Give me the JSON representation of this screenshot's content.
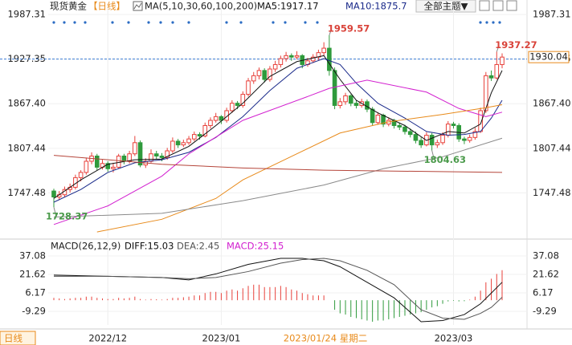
{
  "header": {
    "title": "现货黄金",
    "period": "【日线】",
    "ma_label": "MA(5,10,30,60,100,200)",
    "theme_button": "全部主题▼"
  },
  "chart_data": [
    {
      "type": "candlestick",
      "up_color": "#e8413b",
      "down_color": "#2f9a3c",
      "ylim": [
        1694,
        1996
      ],
      "yticks": [
        1987.31,
        1927.35,
        {
          "value": 1867.4,
          "label": "1867.40"
        },
        1807.44,
        1747.48
      ],
      "xticks": [
        {
          "value": 10,
          "label": "2022/12"
        },
        {
          "value": 31,
          "label": "2023/01"
        },
        {
          "value": 74,
          "label": "2023/03"
        }
      ],
      "reference_line": 1927.35,
      "ohlc": [
        [
          1750,
          1753,
          1728.37,
          1742
        ],
        [
          1742,
          1750,
          1738,
          1745
        ],
        [
          1745,
          1756,
          1742,
          1752
        ],
        [
          1752,
          1760,
          1748,
          1755
        ],
        [
          1755,
          1772,
          1752,
          1768
        ],
        [
          1768,
          1778,
          1763,
          1775
        ],
        [
          1775,
          1795,
          1772,
          1790
        ],
        [
          1790,
          1802,
          1786,
          1797
        ],
        [
          1797,
          1800,
          1778,
          1782
        ],
        [
          1782,
          1792,
          1779,
          1787
        ],
        [
          1787,
          1790,
          1776,
          1780
        ],
        [
          1780,
          1788,
          1775,
          1782
        ],
        [
          1782,
          1800,
          1780,
          1797
        ],
        [
          1797,
          1800,
          1786,
          1790
        ],
        [
          1790,
          1804,
          1787,
          1800
        ],
        [
          1800,
          1824,
          1797,
          1815
        ],
        [
          1815,
          1818,
          1782,
          1785
        ],
        [
          1785,
          1794,
          1781,
          1790
        ],
        [
          1790,
          1806,
          1788,
          1800
        ],
        [
          1800,
          1804,
          1793,
          1797
        ],
        [
          1797,
          1801,
          1790,
          1795
        ],
        [
          1795,
          1808,
          1792,
          1804
        ],
        [
          1804,
          1822,
          1801,
          1817
        ],
        [
          1817,
          1820,
          1808,
          1812
        ],
        [
          1812,
          1819,
          1809,
          1815
        ],
        [
          1815,
          1824,
          1812,
          1820
        ],
        [
          1820,
          1830,
          1817,
          1826
        ],
        [
          1826,
          1829,
          1819,
          1824
        ],
        [
          1824,
          1842,
          1822,
          1838
        ],
        [
          1838,
          1849,
          1834,
          1845
        ],
        [
          1845,
          1855,
          1842,
          1850
        ],
        [
          1850,
          1852,
          1840,
          1845
        ],
        [
          1845,
          1862,
          1842,
          1858
        ],
        [
          1858,
          1872,
          1855,
          1868
        ],
        [
          1868,
          1871,
          1860,
          1865
        ],
        [
          1865,
          1884,
          1862,
          1880
        ],
        [
          1880,
          1902,
          1877,
          1898
        ],
        [
          1898,
          1910,
          1894,
          1905
        ],
        [
          1905,
          1916,
          1900,
          1912
        ],
        [
          1912,
          1915,
          1896,
          1900
        ],
        [
          1900,
          1918,
          1897,
          1914
        ],
        [
          1914,
          1925,
          1910,
          1920
        ],
        [
          1920,
          1932,
          1916,
          1928
        ],
        [
          1928,
          1937,
          1924,
          1932
        ],
        [
          1932,
          1935,
          1925,
          1930
        ],
        [
          1930,
          1938,
          1927,
          1932
        ],
        [
          1932,
          1934,
          1915,
          1920
        ],
        [
          1920,
          1929,
          1917,
          1925
        ],
        [
          1925,
          1934,
          1922,
          1930
        ],
        [
          1930,
          1940,
          1926,
          1936
        ],
        [
          1936,
          1950,
          1932,
          1942
        ],
        [
          1942,
          1959.57,
          1905,
          1912
        ],
        [
          1912,
          1916,
          1860,
          1865
        ],
        [
          1865,
          1875,
          1861,
          1870
        ],
        [
          1870,
          1882,
          1866,
          1878
        ],
        [
          1878,
          1880,
          1864,
          1868
        ],
        [
          1868,
          1872,
          1861,
          1865
        ],
        [
          1865,
          1874,
          1862,
          1870
        ],
        [
          1870,
          1873,
          1856,
          1860
        ],
        [
          1860,
          1863,
          1838,
          1842
        ],
        [
          1842,
          1856,
          1839,
          1852
        ],
        [
          1852,
          1854,
          1836,
          1840
        ],
        [
          1840,
          1849,
          1837,
          1845
        ],
        [
          1845,
          1847,
          1834,
          1838
        ],
        [
          1838,
          1842,
          1832,
          1836
        ],
        [
          1836,
          1839,
          1826,
          1830
        ],
        [
          1830,
          1834,
          1822,
          1826
        ],
        [
          1826,
          1830,
          1814,
          1818
        ],
        [
          1818,
          1822,
          1808,
          1812
        ],
        [
          1812,
          1829,
          1810,
          1825
        ],
        [
          1825,
          1828,
          1804.63,
          1812
        ],
        [
          1812,
          1819,
          1808,
          1815
        ],
        [
          1815,
          1829,
          1812,
          1825
        ],
        [
          1825,
          1844,
          1822,
          1840
        ],
        [
          1840,
          1843,
          1834,
          1838
        ],
        [
          1838,
          1841,
          1816,
          1820
        ],
        [
          1820,
          1823,
          1813,
          1818
        ],
        [
          1818,
          1826,
          1815,
          1822
        ],
        [
          1822,
          1835,
          1819,
          1830
        ],
        [
          1830,
          1862,
          1828,
          1858
        ],
        [
          1858,
          1910,
          1855,
          1905
        ],
        [
          1905,
          1912,
          1898,
          1902
        ],
        [
          1902,
          1937.27,
          1900,
          1920
        ],
        [
          1920,
          1935,
          1915,
          1930.04
        ]
      ],
      "series": [
        {
          "name": "MA5:1917.17",
          "color": "#111111",
          "x": [
            0,
            5,
            10,
            15,
            20,
            25,
            30,
            35,
            40,
            45,
            50,
            53,
            56,
            60,
            65,
            69,
            73,
            76,
            79,
            81,
            83
          ],
          "values": [
            1740,
            1765,
            1786,
            1792,
            1793,
            1810,
            1838,
            1868,
            1904,
            1924,
            1932,
            1900,
            1872,
            1855,
            1838,
            1818,
            1830,
            1828,
            1840,
            1882,
            1912
          ]
        },
        {
          "name": "MA10:1875.7",
          "color": "#1a2a8a",
          "x": [
            0,
            5,
            10,
            15,
            20,
            25,
            30,
            35,
            40,
            45,
            50,
            53,
            56,
            60,
            65,
            69,
            73,
            76,
            79,
            81,
            83
          ],
          "values": [
            1735,
            1752,
            1775,
            1788,
            1792,
            1802,
            1822,
            1850,
            1885,
            1915,
            1928,
            1920,
            1895,
            1868,
            1848,
            1830,
            1825,
            1826,
            1830,
            1848,
            1872
          ]
        },
        {
          "color": "#d21fcf",
          "x": [
            0,
            10,
            20,
            25,
            35,
            47,
            51,
            58,
            69,
            75,
            80,
            83
          ],
          "values": [
            1705,
            1730,
            1770,
            1800,
            1845,
            1877,
            1888,
            1899,
            1883,
            1861,
            1850,
            1856
          ]
        },
        {
          "color": "#e88a1a",
          "x": [
            8,
            20,
            30,
            35,
            45,
            53,
            62,
            72,
            80,
            83
          ],
          "values": [
            1695,
            1712,
            1740,
            1765,
            1800,
            1828,
            1843,
            1853,
            1862,
            1866
          ]
        },
        {
          "color": "#8a8a8a",
          "x": [
            0,
            20,
            35,
            50,
            61,
            72,
            83
          ],
          "values": [
            1715,
            1720,
            1737,
            1758,
            1780,
            1796,
            1821
          ]
        },
        {
          "color": "#b5453a",
          "x": [
            0,
            20,
            35,
            50,
            83
          ],
          "values": [
            1798,
            1786,
            1781,
            1778,
            1775
          ]
        }
      ]
    },
    {
      "type": "macd",
      "title": "MACD(26,12,9)",
      "ylim": [
        -20.7,
        43.1
      ],
      "yticks": [
        37.08,
        21.62,
        6.17,
        -9.29
      ],
      "up_color": "#e8413b",
      "down_color": "#2f9a3c",
      "series": [
        {
          "name": "DIFF:15.03",
          "color": "#111111",
          "x": [
            0,
            10,
            20,
            25,
            30,
            36,
            42,
            46,
            50,
            53,
            58,
            63,
            68,
            72,
            76,
            79,
            81,
            83
          ],
          "values": [
            21,
            20,
            19,
            17,
            22,
            30,
            35,
            35,
            33,
            28,
            15,
            2,
            -18,
            -17,
            -12,
            -3,
            6,
            15.03
          ]
        },
        {
          "name": "DEA:2.45",
          "color": "#555555",
          "x": [
            0,
            10,
            20,
            25,
            30,
            36,
            42,
            46,
            50,
            53,
            58,
            63,
            68,
            72,
            76,
            79,
            81,
            83
          ],
          "values": [
            20,
            20,
            19,
            18,
            19,
            24,
            31,
            34,
            35,
            33,
            25,
            13,
            -8,
            -15,
            -16,
            -11,
            -6,
            2.45
          ]
        }
      ],
      "histogram": {
        "name": "MACD:25.15",
        "color": "#d21fcf",
        "values": [
          2,
          1.5,
          1,
          1.5,
          2,
          2,
          3,
          3,
          2,
          1.5,
          1,
          1,
          2,
          1.5,
          2,
          3,
          1,
          0.5,
          1,
          0.8,
          0.5,
          1,
          2,
          2,
          2.5,
          3,
          4,
          4,
          6,
          7,
          7,
          6,
          8,
          9,
          8,
          10,
          12,
          13,
          13,
          11,
          11,
          11,
          12,
          11,
          9,
          8,
          6,
          5,
          4,
          4,
          4,
          0,
          -8,
          -11,
          -12,
          -14,
          -15,
          -16,
          -17,
          -18,
          -17,
          -17,
          -16,
          -15,
          -14,
          -13,
          -12,
          -11,
          -10,
          -8,
          -6,
          -5,
          -3,
          -1,
          -0.5,
          -1,
          -0.8,
          0.5,
          3,
          8,
          15,
          18,
          22,
          25.15
        ]
      }
    }
  ],
  "footer": {
    "period": "日线",
    "crosshair_label": "2023/01/24 星期二"
  }
}
